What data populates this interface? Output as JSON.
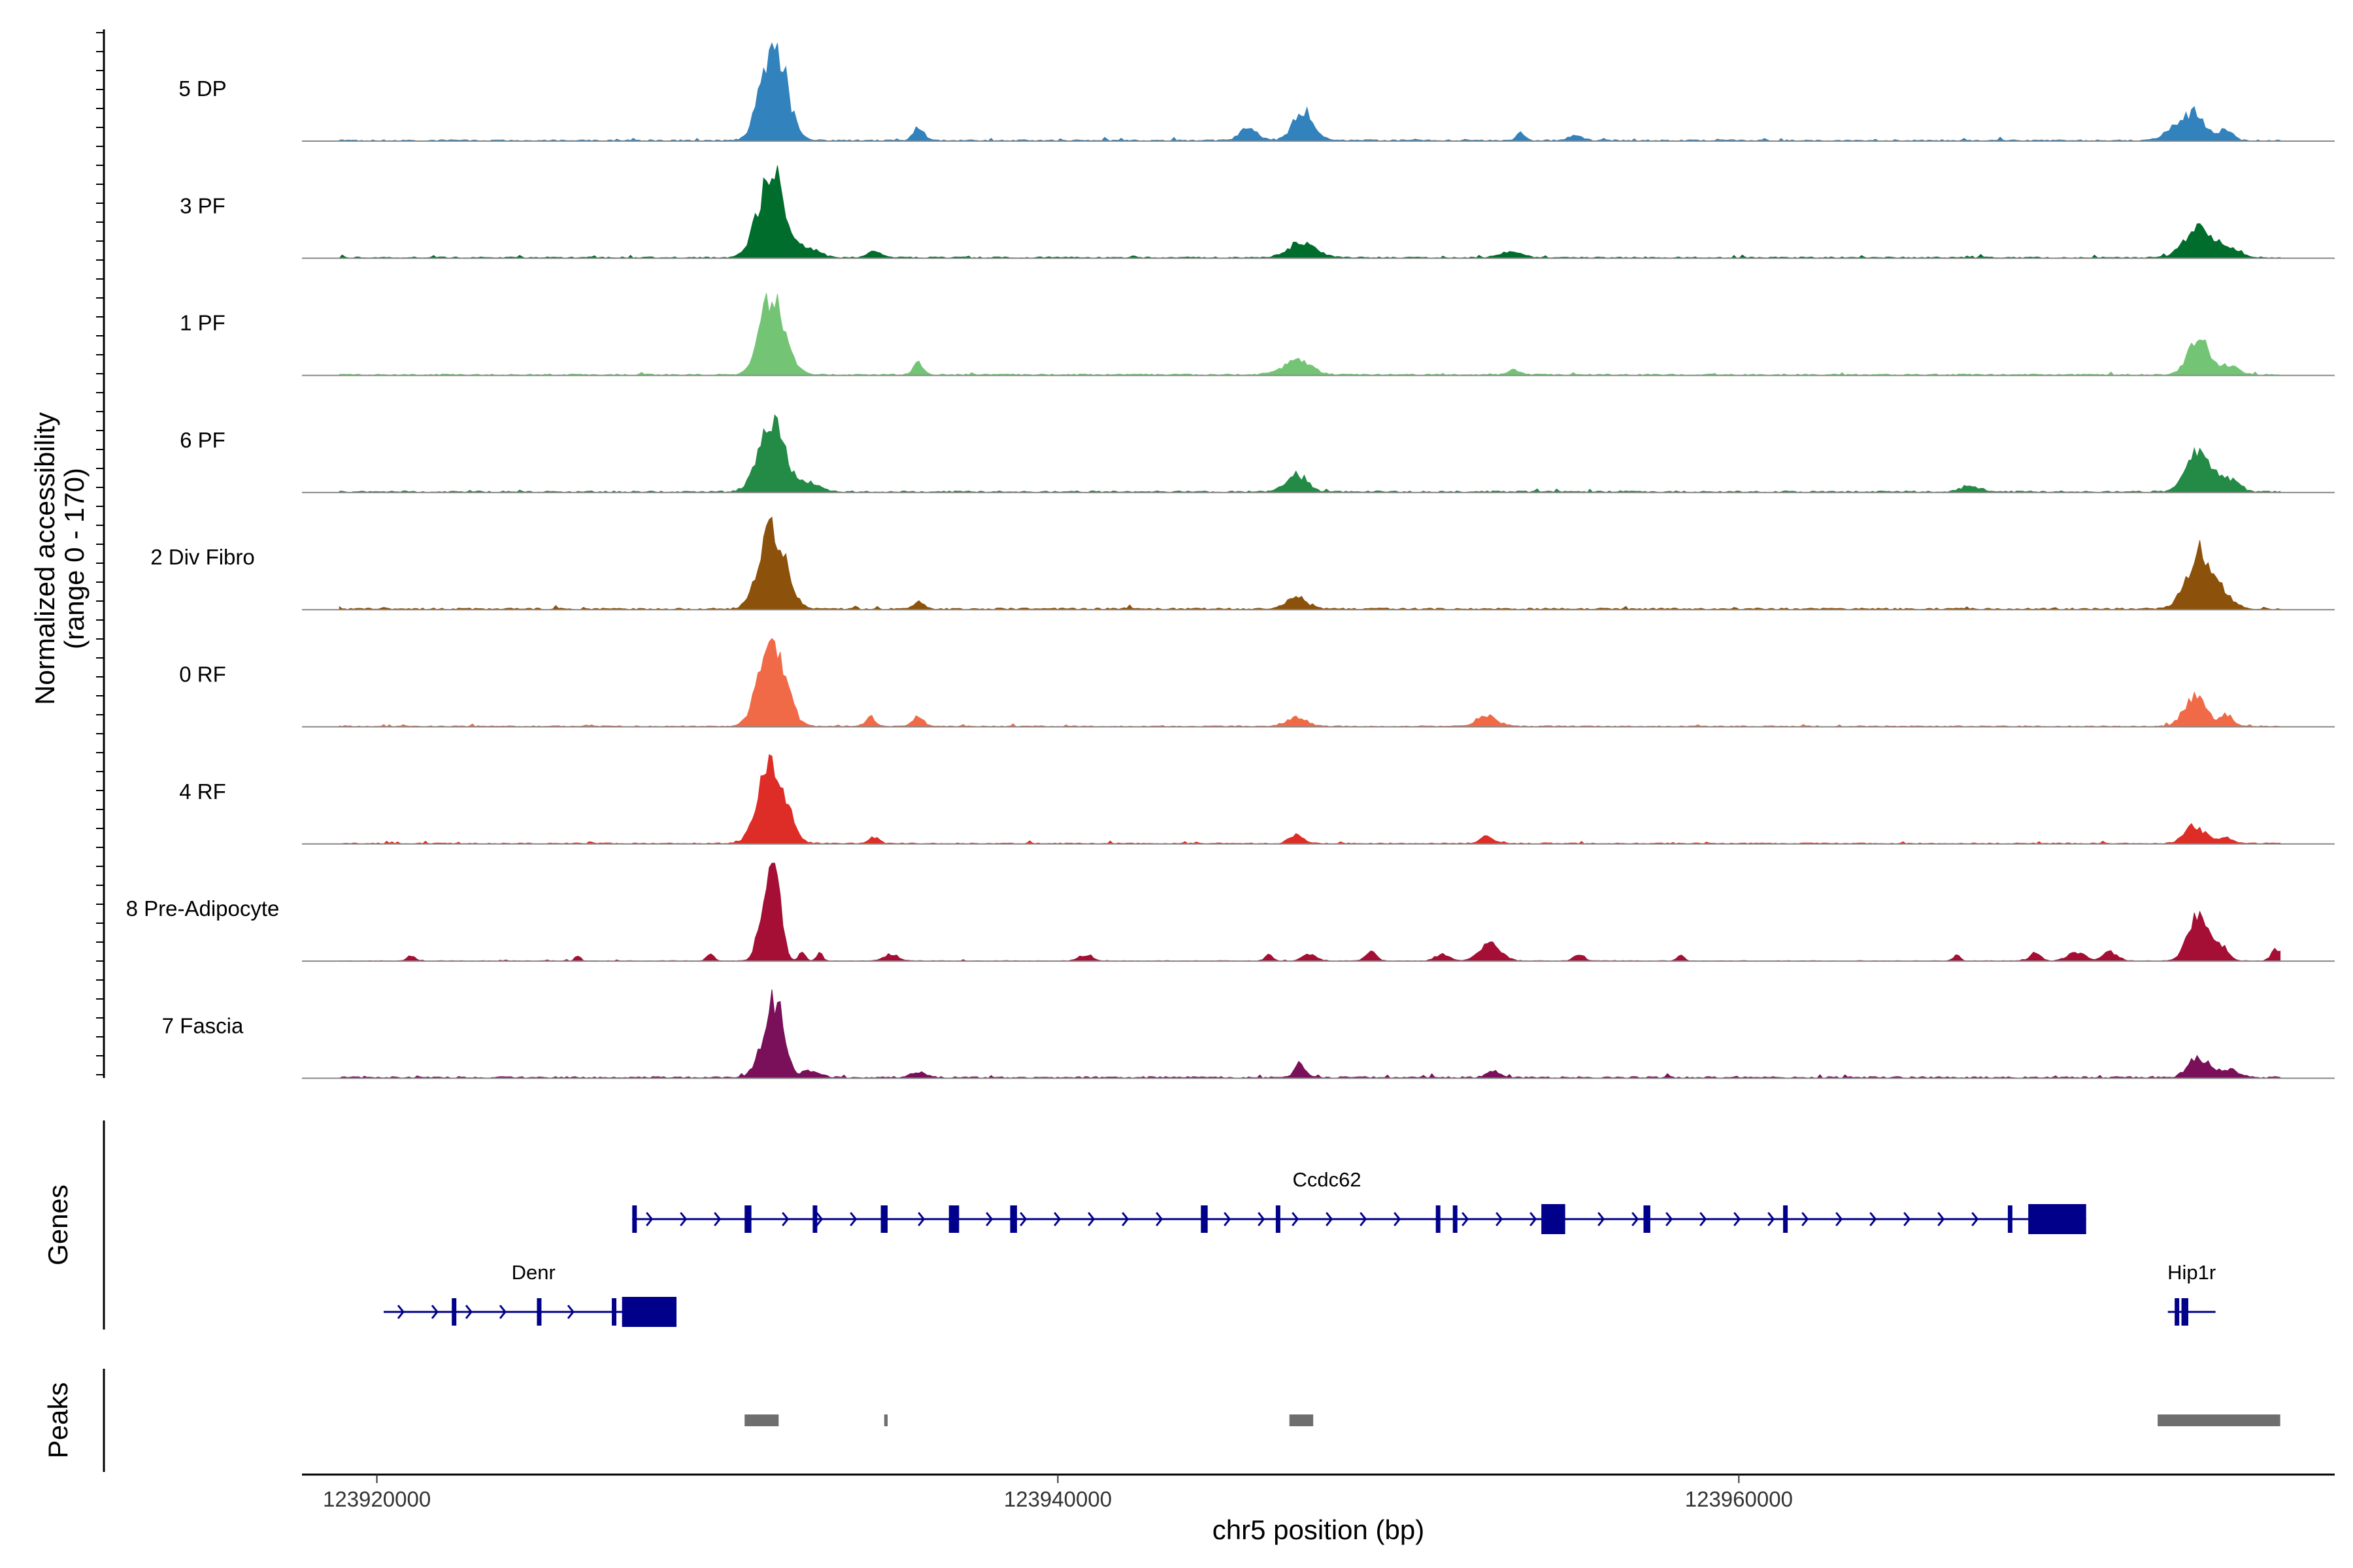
{
  "chart_data": {
    "type": "area",
    "title": "",
    "xlabel": "chr5 position (bp)",
    "ylabel": "Normalized accessibility",
    "ylabel_sub": "(range 0 - 170)",
    "y_range": [
      0,
      170
    ],
    "x_range": [
      123917800,
      123977500
    ],
    "x_ticks": [
      123920000,
      123940000,
      123960000
    ],
    "x_tick_labels": [
      "123920000",
      "123940000",
      "123960000"
    ],
    "region": {
      "chrom": "chr5",
      "start": 123917800,
      "end": 123977500,
      "plot_start": 123918900,
      "plot_end": 123975900
    },
    "tracks_panel_label": "",
    "genes_panel_label": "Genes",
    "peaks_panel_label": "Peaks",
    "series": [
      {
        "name": "5 DP",
        "color": "#3182bd",
        "noise": 2.5,
        "seed": 11,
        "peaks": [
          [
            123931700,
            150,
            350
          ],
          [
            123931350,
            40,
            250
          ],
          [
            123935900,
            22,
            150
          ],
          [
            123945600,
            20,
            250
          ],
          [
            123947200,
            50,
            300
          ],
          [
            123953600,
            12,
            120
          ],
          [
            123955200,
            8,
            200
          ],
          [
            123973400,
            45,
            300
          ],
          [
            123972800,
            20,
            300
          ],
          [
            123974300,
            20,
            200
          ]
        ]
      },
      {
        "name": "3 PF",
        "color": "#006d2c",
        "noise": 2.5,
        "seed": 23,
        "peaks": [
          [
            123931700,
            120,
            350
          ],
          [
            123931300,
            50,
            300
          ],
          [
            123932700,
            15,
            300
          ],
          [
            123934600,
            10,
            200
          ],
          [
            123947200,
            25,
            400
          ],
          [
            123953300,
            10,
            300
          ],
          [
            123973500,
            55,
            400
          ],
          [
            123974400,
            15,
            300
          ]
        ]
      },
      {
        "name": "1 PF",
        "color": "#74c476",
        "noise": 2.5,
        "seed": 37,
        "peaks": [
          [
            123931700,
            120,
            350
          ],
          [
            123931300,
            30,
            250
          ],
          [
            123935900,
            20,
            150
          ],
          [
            123947000,
            25,
            400
          ],
          [
            123953400,
            8,
            200
          ],
          [
            123973500,
            60,
            300
          ],
          [
            123974400,
            15,
            300
          ]
        ]
      },
      {
        "name": "6 PF",
        "color": "#238b45",
        "noise": 3,
        "seed": 41,
        "peaks": [
          [
            123931700,
            95,
            350
          ],
          [
            123931300,
            40,
            300
          ],
          [
            123932700,
            15,
            300
          ],
          [
            123947000,
            30,
            300
          ],
          [
            123966800,
            10,
            300
          ],
          [
            123973500,
            70,
            350
          ],
          [
            123974400,
            20,
            300
          ]
        ]
      },
      {
        "name": "2 Div Fibro",
        "color": "#8c510a",
        "noise": 3,
        "seed": 53,
        "peaks": [
          [
            123931700,
            125,
            350
          ],
          [
            123931300,
            30,
            300
          ],
          [
            123935900,
            12,
            150
          ],
          [
            123947000,
            20,
            300
          ],
          [
            123973500,
            95,
            350
          ],
          [
            123974200,
            25,
            300
          ]
        ]
      },
      {
        "name": "0 RF",
        "color": "#f16a48",
        "noise": 2,
        "seed": 67,
        "peaks": [
          [
            123931700,
            120,
            350
          ],
          [
            123931300,
            40,
            300
          ],
          [
            123934500,
            15,
            150
          ],
          [
            123935900,
            20,
            150
          ],
          [
            123947000,
            15,
            300
          ],
          [
            123952600,
            18,
            300
          ],
          [
            123973400,
            55,
            300
          ],
          [
            123974300,
            20,
            200
          ]
        ]
      },
      {
        "name": "4 RF",
        "color": "#de2d26",
        "noise": 2,
        "seed": 71,
        "peaks": [
          [
            123931700,
            120,
            350
          ],
          [
            123931300,
            40,
            300
          ],
          [
            123934600,
            12,
            150
          ],
          [
            123947000,
            15,
            200
          ],
          [
            123952600,
            12,
            200
          ],
          [
            123973400,
            30,
            300
          ],
          [
            123974300,
            10,
            200
          ]
        ]
      },
      {
        "name": "8 Pre-Adipocyte",
        "color": "#a50f35",
        "noise": 1,
        "seed": 83,
        "peaks": [
          [
            123921000,
            10,
            100
          ],
          [
            123925900,
            10,
            80
          ],
          [
            123929800,
            15,
            100
          ],
          [
            123931650,
            170,
            200
          ],
          [
            123931250,
            50,
            150
          ],
          [
            123932500,
            20,
            80
          ],
          [
            123933000,
            15,
            80
          ],
          [
            123935100,
            12,
            200
          ],
          [
            123940800,
            10,
            200
          ],
          [
            123946200,
            10,
            120
          ],
          [
            123947400,
            12,
            200
          ],
          [
            123949200,
            15,
            150
          ],
          [
            123951300,
            12,
            200
          ],
          [
            123952700,
            30,
            300
          ],
          [
            123955300,
            12,
            150
          ],
          [
            123958300,
            10,
            100
          ],
          [
            123966400,
            10,
            100
          ],
          [
            123968700,
            15,
            150
          ],
          [
            123969900,
            15,
            250
          ],
          [
            123970900,
            15,
            200
          ],
          [
            123973500,
            80,
            300
          ],
          [
            123974200,
            20,
            200
          ],
          [
            123975800,
            20,
            150
          ]
        ]
      },
      {
        "name": "7 Fascia",
        "color": "#7a0f5a",
        "noise": 3,
        "seed": 97,
        "peaks": [
          [
            123931700,
            125,
            250
          ],
          [
            123931300,
            30,
            250
          ],
          [
            123932700,
            10,
            300
          ],
          [
            123935900,
            10,
            200
          ],
          [
            123947100,
            25,
            150
          ],
          [
            123952800,
            10,
            200
          ],
          [
            123973500,
            35,
            300
          ],
          [
            123974400,
            15,
            250
          ]
        ]
      }
    ],
    "genes": [
      {
        "name": "Ccdc62",
        "strand": "+",
        "start": 123927500,
        "end": 123970200,
        "row": 0,
        "exons": [
          [
            123927500,
            123927600
          ],
          [
            123930800,
            123931000
          ],
          [
            123932800,
            123932900
          ],
          [
            123934800,
            123935000
          ],
          [
            123936800,
            123937100
          ],
          [
            123938600,
            123938800
          ],
          [
            123944200,
            123944400
          ],
          [
            123946400,
            123946500
          ],
          [
            123951100,
            123951200
          ],
          [
            123951600,
            123951700
          ],
          [
            123954200,
            123954900
          ],
          [
            123957200,
            123957400
          ],
          [
            123961300,
            123961400
          ],
          [
            123967900,
            123968000
          ],
          [
            123968500,
            123970200
          ]
        ]
      },
      {
        "name": "Denr",
        "strand": "+",
        "start": 123920200,
        "end": 123928800,
        "row": 1,
        "exons": [
          [
            123922200,
            123922300
          ],
          [
            123924700,
            123924800
          ],
          [
            123926900,
            123927000
          ],
          [
            123927200,
            123928800
          ]
        ]
      },
      {
        "name": "Hip1r",
        "strand": "+",
        "start": 123972600,
        "end": 123974000,
        "row": 1,
        "exons": [
          [
            123972800,
            123972900
          ],
          [
            123973000,
            123973200
          ]
        ]
      }
    ],
    "peaks": [
      [
        123930800,
        123931800
      ],
      [
        123934900,
        123935000
      ],
      [
        123946800,
        123947500
      ],
      [
        123972300,
        123975900
      ]
    ]
  }
}
